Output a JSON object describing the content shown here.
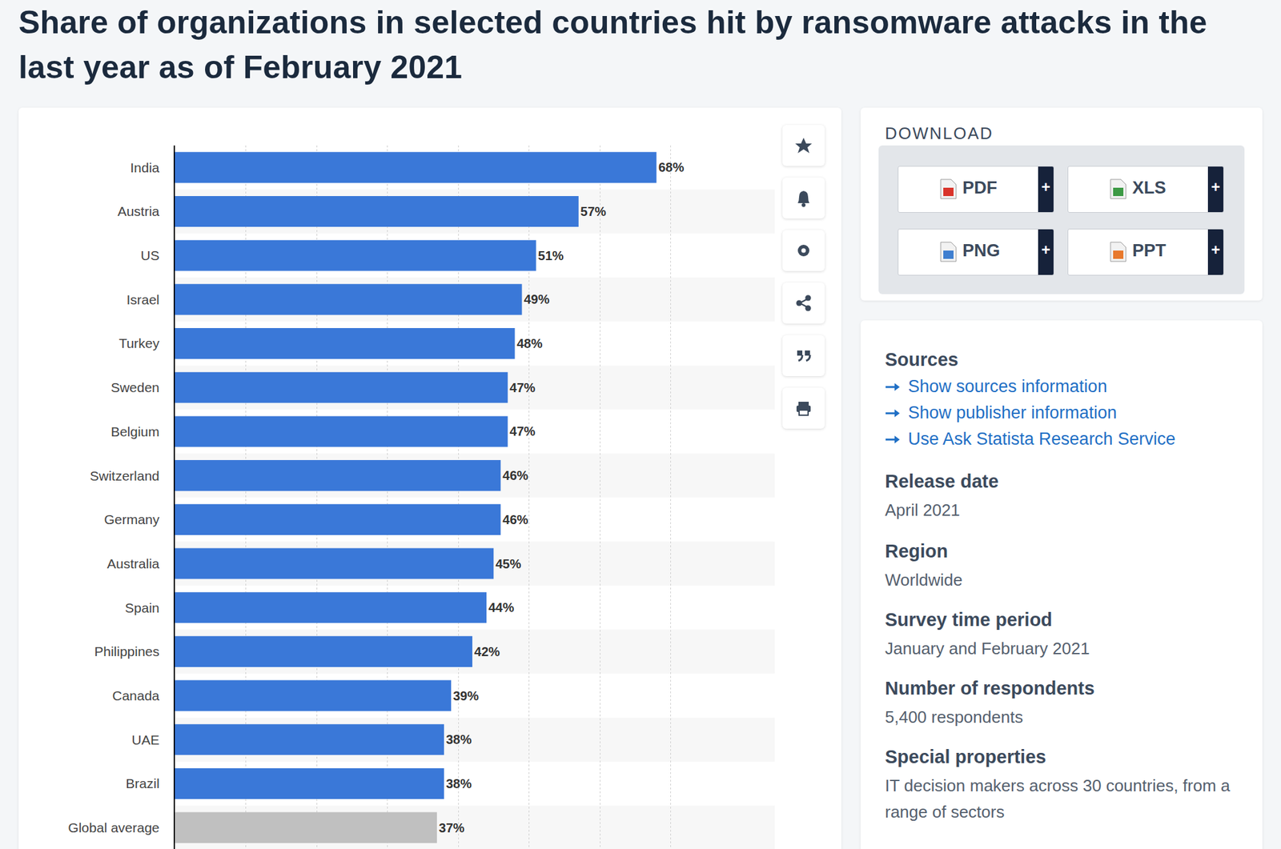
{
  "chart_data": {
    "type": "bar",
    "title": "Share of organizations in selected countries hit by ransomware attacks in the last year as of February 2021",
    "orientation": "horizontal",
    "categories": [
      "India",
      "Austria",
      "US",
      "Israel",
      "Turkey",
      "Sweden",
      "Belgium",
      "Switzerland",
      "Germany",
      "Australia",
      "Spain",
      "Philippines",
      "Canada",
      "UAE",
      "Brazil",
      "Global average"
    ],
    "values": [
      68,
      57,
      51,
      49,
      48,
      47,
      47,
      46,
      46,
      45,
      44,
      42,
      39,
      38,
      38,
      37
    ],
    "value_labels": [
      "68%",
      "57%",
      "51%",
      "49%",
      "48%",
      "47%",
      "47%",
      "46%",
      "46%",
      "45%",
      "44%",
      "42%",
      "39%",
      "38%",
      "38%",
      "37%"
    ],
    "colors": [
      "#3a78d8",
      "#3a78d8",
      "#3a78d8",
      "#3a78d8",
      "#3a78d8",
      "#3a78d8",
      "#3a78d8",
      "#3a78d8",
      "#3a78d8",
      "#3a78d8",
      "#3a78d8",
      "#3a78d8",
      "#3a78d8",
      "#3a78d8",
      "#3a78d8",
      "#c0c0c0"
    ],
    "xlim": [
      0,
      80
    ],
    "xticks": [
      0,
      10,
      20,
      30,
      40,
      50,
      60,
      70,
      80
    ],
    "grid": true,
    "data_labels": true,
    "tick_labels": "y"
  },
  "sidebar": {
    "download": {
      "heading": "DOWNLOAD",
      "buttons": [
        "PDF",
        "XLS",
        "PNG",
        "PPT"
      ],
      "button_badge": "+"
    },
    "sources": {
      "heading": "Sources",
      "links": [
        "Show sources information",
        "Show publisher information",
        "Use Ask Statista Research Service"
      ]
    },
    "details": [
      {
        "label": "Release date",
        "value": "April 2021"
      },
      {
        "label": "Region",
        "value": "Worldwide"
      },
      {
        "label": "Survey time period",
        "value": "January and February 2021"
      },
      {
        "label": "Number of respondents",
        "value": "5,400 respondents"
      },
      {
        "label": "Special properties",
        "value": "IT decision makers across 30 countries, from a range of sectors"
      }
    ]
  }
}
